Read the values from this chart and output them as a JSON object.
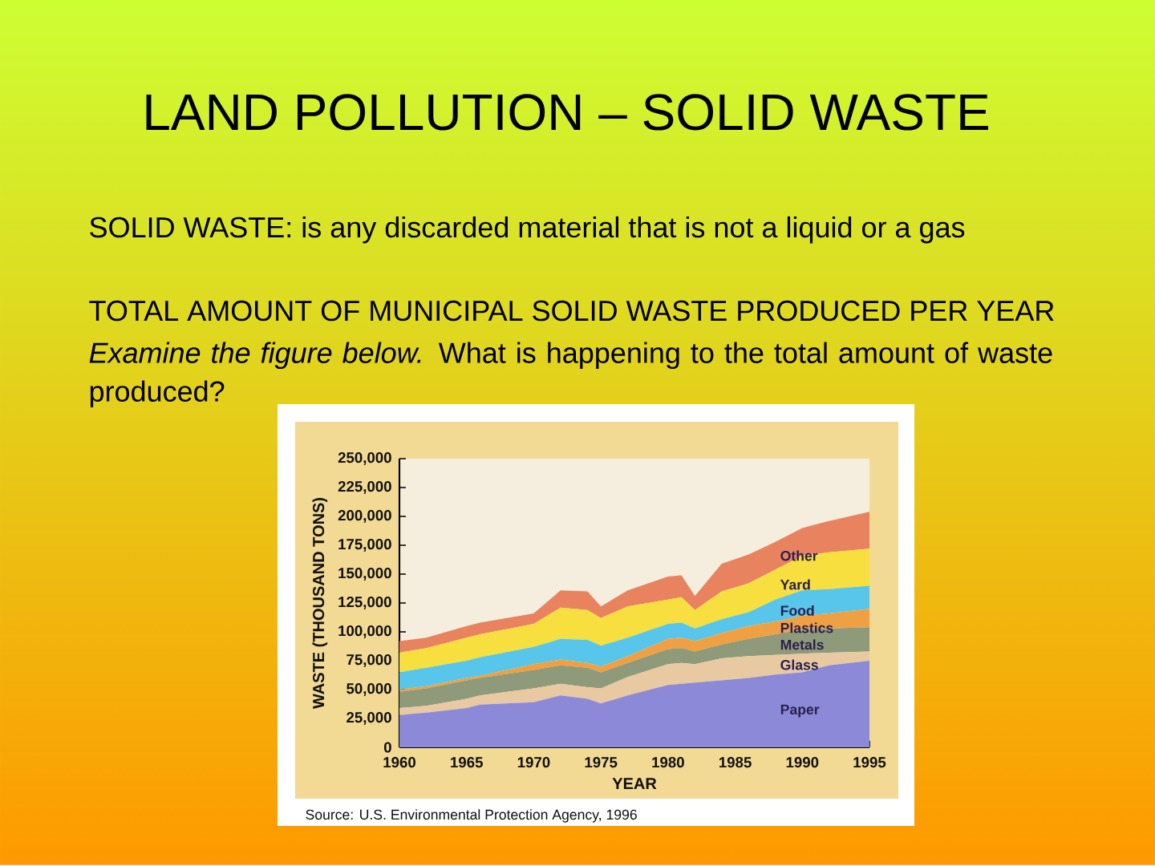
{
  "chart_data": {
    "type": "area",
    "title": "LAND POLLUTION – SOLID WASTE",
    "subtitle": "TOTAL AMOUNT OF MUNICIPAL SOLID WASTE PRODUCED PER YEAR",
    "annotations": [
      "SOLID WASTE: is any discarded material that is not a liquid or a gas",
      "*Examine the figure below.* What is happening to the total amount of waste produced?",
      "Source: U.S. Environmental Protection Agency, 1996"
    ],
    "xlabel": "YEAR",
    "ylabel": "WASTE (THOUSAND TONS)",
    "x": [
      1960,
      1962,
      1965,
      1966,
      1970,
      1972,
      1974,
      1975,
      1977,
      1980,
      1981,
      1982,
      1984,
      1986,
      1988,
      1990,
      1992,
      1995
    ],
    "series": [
      {
        "name": "Paper",
        "color": "#8c89d8",
        "values": [
          28000,
          30000,
          34000,
          37000,
          39000,
          45000,
          42000,
          38000,
          45000,
          54000,
          55000,
          56000,
          58000,
          60000,
          63000,
          65000,
          71000,
          75000
        ]
      },
      {
        "name": "Glass",
        "color": "#e9c9a2",
        "values": [
          6000,
          6000,
          8000,
          8000,
          12000,
          10000,
          10000,
          13000,
          16000,
          18000,
          18000,
          16000,
          19000,
          19000,
          17000,
          16000,
          11000,
          8000
        ]
      },
      {
        "name": "Metals",
        "color": "#8f9a7a",
        "values": [
          14000,
          15000,
          16000,
          15000,
          16000,
          16000,
          17000,
          14000,
          12000,
          13000,
          13000,
          11000,
          12000,
          15000,
          18000,
          21000,
          21000,
          21000
        ]
      },
      {
        "name": "Plastics",
        "color": "#efa042",
        "values": [
          2000,
          2000,
          2000,
          2000,
          5000,
          5000,
          4000,
          5000,
          6000,
          9000,
          9000,
          9000,
          10000,
          11000,
          11000,
          12000,
          13000,
          16000
        ]
      },
      {
        "name": "Food",
        "color": "#57c6ea",
        "values": [
          15000,
          16000,
          15000,
          16000,
          15000,
          18000,
          20000,
          18000,
          16000,
          13000,
          13000,
          11000,
          12000,
          12000,
          19000,
          22000,
          21000,
          20000
        ]
      },
      {
        "name": "Yard",
        "color": "#f6df3e",
        "values": [
          17000,
          17000,
          20000,
          20000,
          20000,
          27000,
          26000,
          24000,
          27000,
          21000,
          22000,
          16000,
          24000,
          25000,
          26000,
          30000,
          32000,
          32000
        ]
      },
      {
        "name": "Other",
        "color": "#e9825f",
        "values": [
          10000,
          9000,
          10000,
          10000,
          9000,
          15000,
          16000,
          10000,
          14000,
          20000,
          19000,
          12000,
          24000,
          25000,
          24000,
          24000,
          27000,
          32000
        ]
      }
    ],
    "stacked": true,
    "xlim": [
      1960,
      1995
    ],
    "ylim": [
      0,
      250000
    ],
    "xticks": [
      1960,
      1965,
      1970,
      1975,
      1980,
      1985,
      1990,
      1995
    ],
    "yticks": [
      0,
      {
        "value": 25000,
        "label": "25,000"
      },
      {
        "value": 50000,
        "label": "50,000"
      },
      {
        "value": 75000,
        "label": "75,000"
      },
      {
        "value": 100000,
        "label": "100,000"
      },
      {
        "value": 125000,
        "label": "125,000"
      },
      {
        "value": 150000,
        "label": "150,000"
      },
      {
        "value": 175000,
        "label": "175,000"
      },
      {
        "value": 200000,
        "label": "200,000"
      },
      {
        "value": 225000,
        "label": "225,000"
      },
      {
        "value": 250000,
        "label": "250,000"
      }
    ]
  }
}
